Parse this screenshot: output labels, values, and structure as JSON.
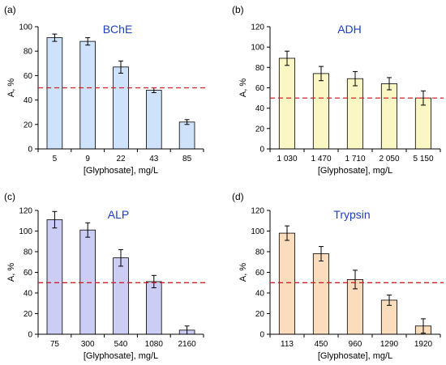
{
  "chart_data": [
    {
      "type": "bar",
      "panel_label": "(a)",
      "title": "BChE",
      "xlabel": "[Glyphosate], mg/L",
      "ylabel": "A, %",
      "categories": [
        "5",
        "9",
        "22",
        "43",
        "85"
      ],
      "values": [
        91,
        88,
        67,
        48,
        22
      ],
      "errors": [
        3,
        3,
        5,
        2,
        2
      ],
      "ylim": [
        0,
        100
      ],
      "yticks": [
        "0",
        "20",
        "40",
        "60",
        "80",
        "100"
      ],
      "threshold": 50,
      "bar_color": "#cfe2fb",
      "threshold_color": "#d0202a",
      "title_color": "#1f3fbf"
    },
    {
      "type": "bar",
      "panel_label": "(b)",
      "title": "ADH",
      "xlabel": "[Glyphosate], mg/L",
      "ylabel": "A, %",
      "categories": [
        "1 030",
        "1 470",
        "1 710",
        "2 050",
        "5 150"
      ],
      "values": [
        89,
        74,
        69,
        64,
        50
      ],
      "errors": [
        7,
        7,
        7,
        6,
        7
      ],
      "ylim": [
        0,
        120
      ],
      "yticks": [
        "0",
        "20",
        "40",
        "60",
        "80",
        "100",
        "120"
      ],
      "threshold": 50,
      "bar_color": "#fbf7c4",
      "threshold_color": "#d0202a",
      "title_color": "#1f3fbf"
    },
    {
      "type": "bar",
      "panel_label": "(c)",
      "title": "ALP",
      "xlabel": "[Glyphosate], mg/L",
      "ylabel": "A, %",
      "categories": [
        "75",
        "300",
        "540",
        "1080",
        "2160"
      ],
      "values": [
        111,
        101,
        74,
        51,
        4
      ],
      "errors": [
        8,
        7,
        8,
        6,
        4
      ],
      "ylim": [
        0,
        120
      ],
      "yticks": [
        "0",
        "20",
        "40",
        "60",
        "80",
        "100",
        "120"
      ],
      "threshold": 50,
      "bar_color": "#cccdf5",
      "threshold_color": "#d0202a",
      "title_color": "#1f3fbf"
    },
    {
      "type": "bar",
      "panel_label": "(d)",
      "title": "Trypsin",
      "xlabel": "[Glyphosate], mg/L",
      "ylabel": "A, %",
      "categories": [
        "113",
        "450",
        "960",
        "1290",
        "1920"
      ],
      "values": [
        98,
        78,
        53,
        33,
        8
      ],
      "errors": [
        7,
        7,
        9,
        5,
        7
      ],
      "ylim": [
        0,
        120
      ],
      "yticks": [
        "0",
        "20",
        "40",
        "60",
        "80",
        "100",
        "120"
      ],
      "threshold": 50,
      "bar_color": "#fbdcbd",
      "threshold_color": "#d0202a",
      "title_color": "#1f3fbf"
    }
  ]
}
